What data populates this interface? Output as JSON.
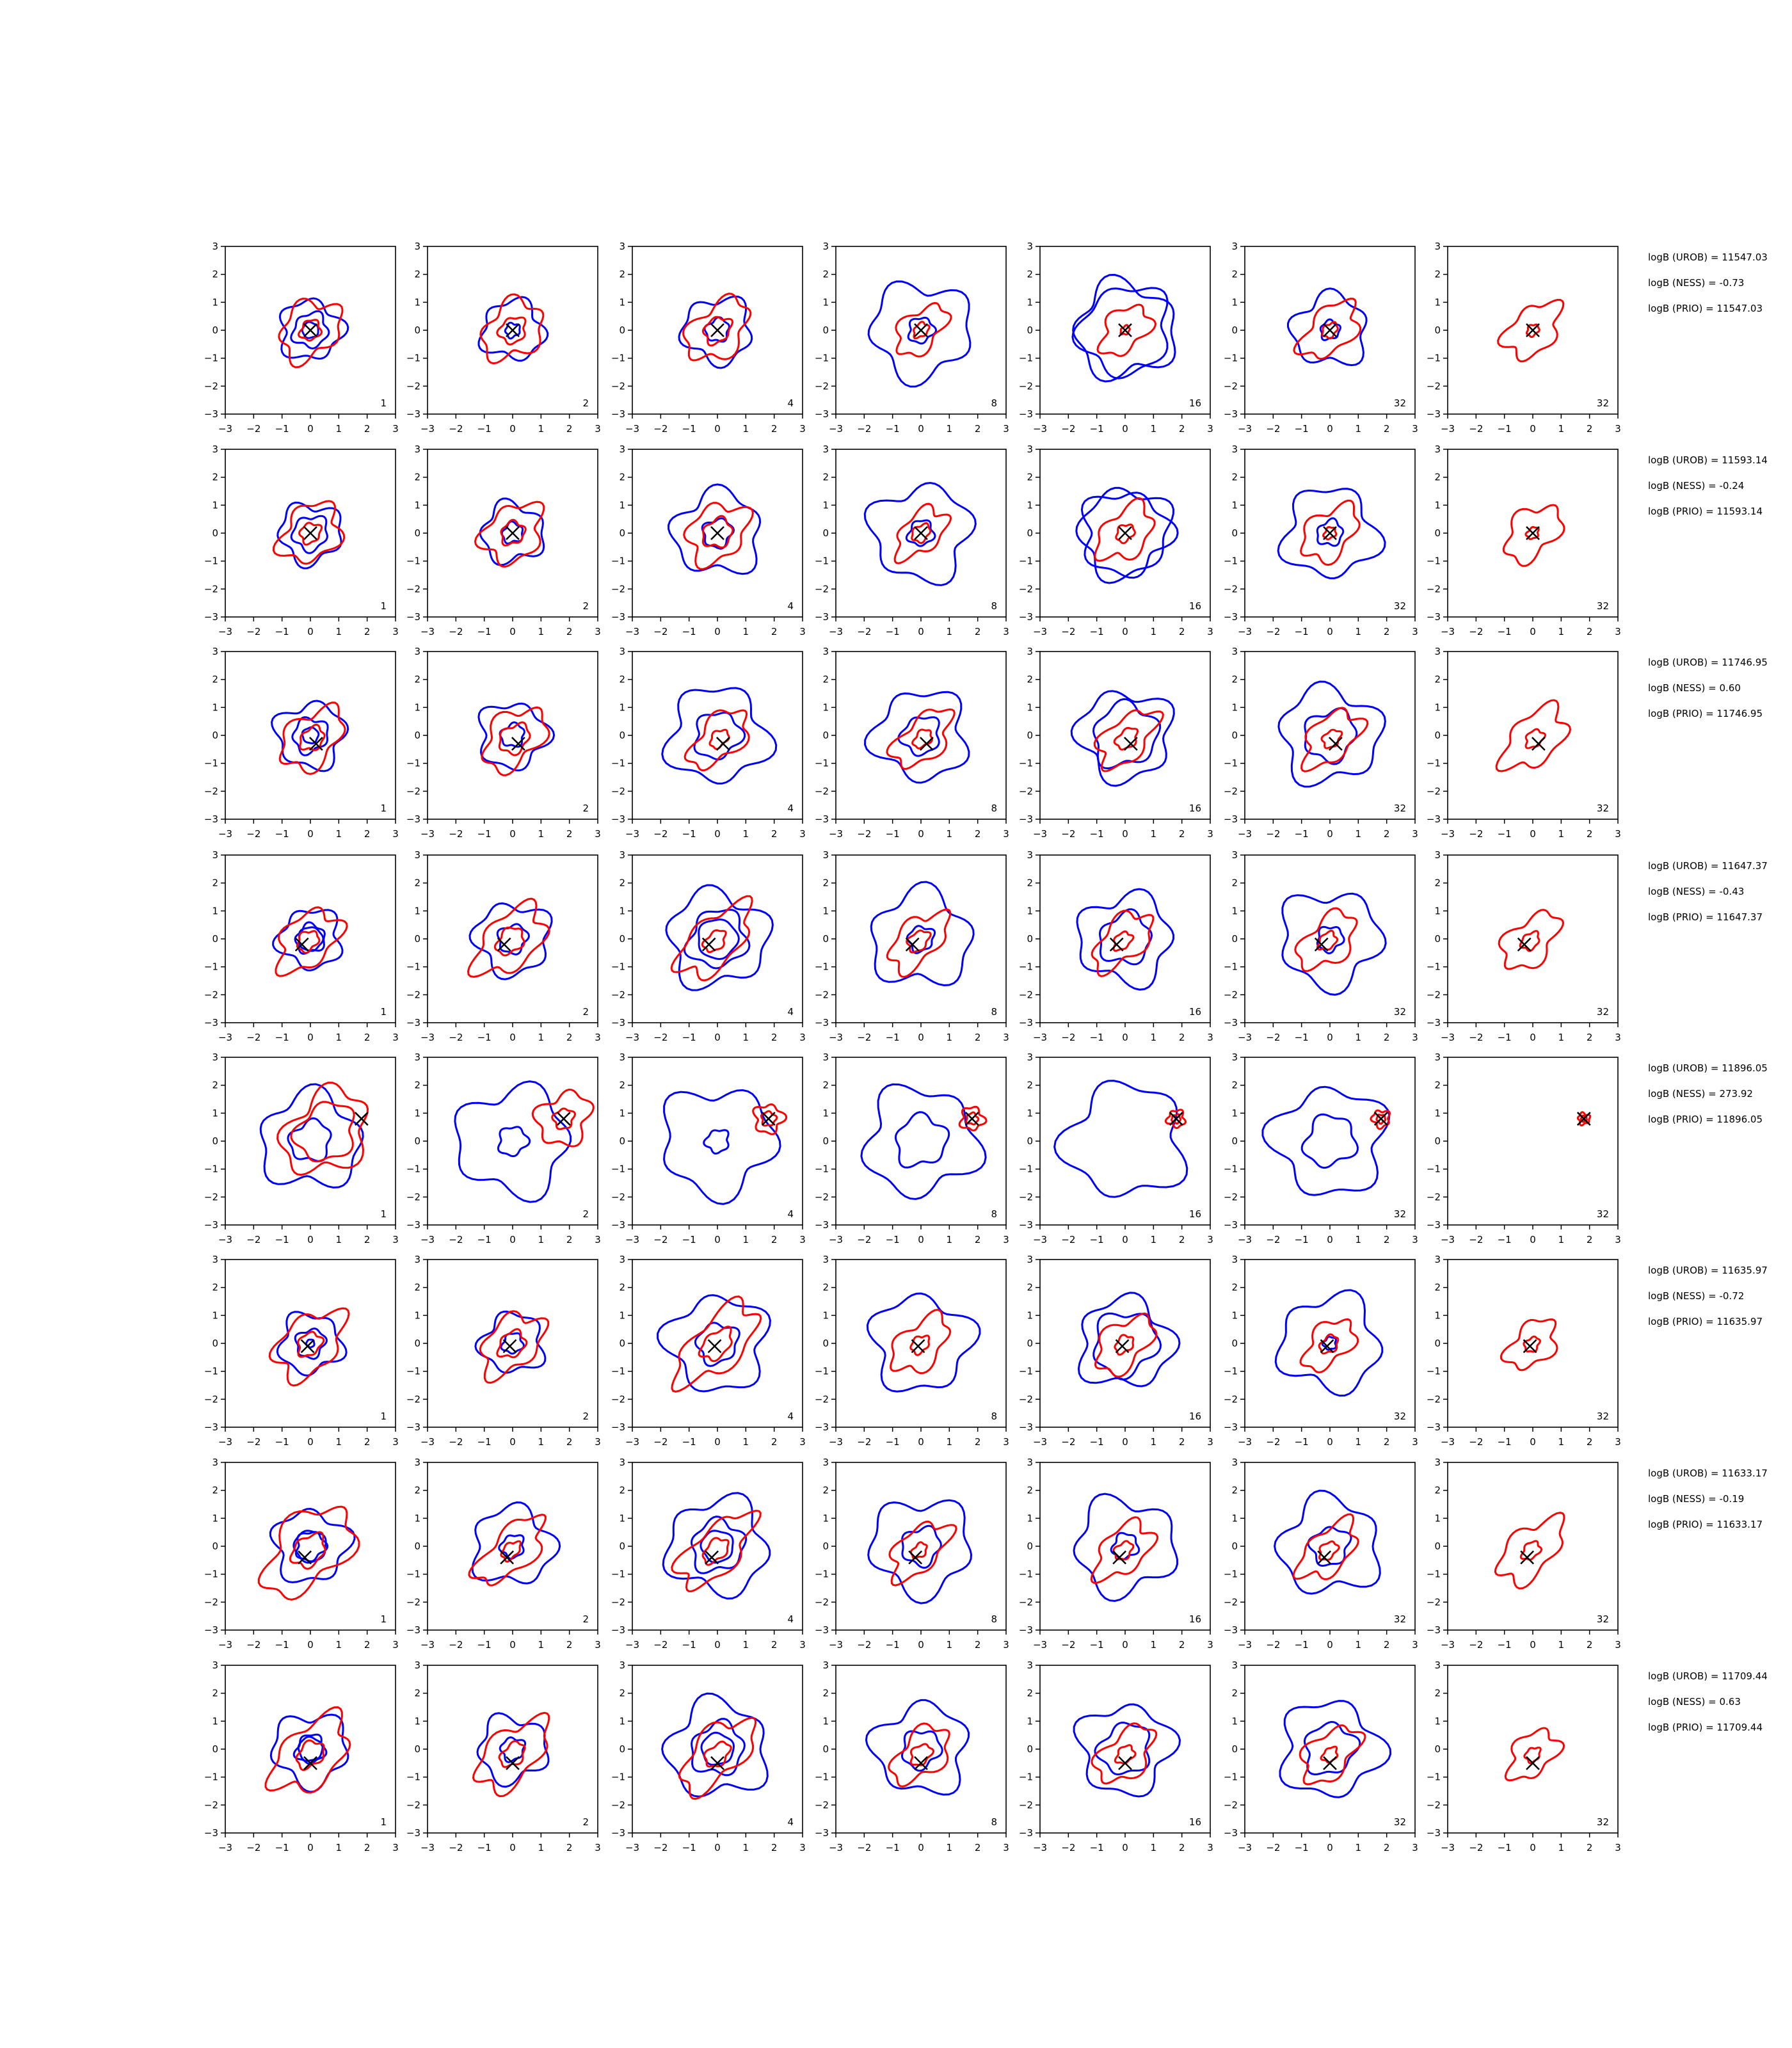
{
  "figure": {
    "panel_labels": [
      "1",
      "2",
      "4",
      "8",
      "16",
      "32",
      "32"
    ]
  },
  "colors": {
    "red_contours": "#ff0000",
    "blue_contours": "#0000ff",
    "marker": "#000000"
  },
  "chart_data": {
    "type": "contour-grid",
    "rows": 8,
    "cols": 7,
    "xlim": [
      -3,
      3
    ],
    "ylim": [
      -3,
      3
    ],
    "x_ticks": [
      -3,
      -2,
      -1,
      0,
      1,
      2,
      3
    ],
    "y_ticks": [
      -3,
      -2,
      -1,
      0,
      1,
      2,
      3
    ],
    "tick_labels": [
      "−3",
      "−2",
      "−1",
      "0",
      "1",
      "2",
      "3"
    ],
    "marker_symbol": "x",
    "panels": [
      {
        "marker": [
          0.0,
          0.0
        ],
        "logB": {
          "UROB": "11547.03",
          "NESS": "-0.73",
          "PRIO": "11547.03"
        },
        "blue": [
          [
            1.0,
            0.6,
            0.2,
            0,
            0
          ],
          [
            1.0,
            0.25,
            0,
            0,
            0
          ],
          [
            1.1,
            0.4,
            0,
            0,
            0
          ],
          [
            1.6,
            -0.2,
            0,
            0,
            0
          ],
          [
            1.6,
            -0.7,
            0,
            0,
            0
          ],
          [
            1.2,
            0.15,
            0,
            0,
            0
          ],
          [
            0,
            0,
            0,
            0,
            0
          ]
        ],
        "red": [
          [
            1.0,
            0.35,
            0.3,
            0,
            0
          ],
          [
            1.0,
            0.45,
            0.3,
            0,
            0
          ],
          [
            1.0,
            0.45,
            0.5,
            0,
            0
          ],
          [
            0.8,
            0.25,
            0.6,
            0,
            0
          ],
          [
            0.8,
            0.15,
            0.5,
            0,
            0
          ],
          [
            0.9,
            0.25,
            0.6,
            0,
            0
          ],
          [
            0.9,
            0.2,
            0.5,
            0,
            0
          ]
        ]
      },
      {
        "marker": [
          0.0,
          0.0
        ],
        "logB": {
          "UROB": "11593.14",
          "NESS": "-0.24",
          "PRIO": "11593.14"
        },
        "blue": [
          [
            1.0,
            0.6,
            0.0,
            0,
            0
          ],
          [
            1.0,
            0.35,
            0,
            0,
            0
          ],
          [
            1.4,
            0.5,
            0,
            0,
            0
          ],
          [
            1.6,
            -0.2,
            0,
            0,
            0
          ],
          [
            1.4,
            0.7,
            0,
            0,
            0
          ],
          [
            1.5,
            0.2,
            0,
            0,
            0
          ],
          [
            0,
            0,
            0,
            0,
            0
          ]
        ],
        "red": [
          [
            1.0,
            0.35,
            0.3,
            0,
            0
          ],
          [
            1.0,
            0.4,
            0.3,
            0,
            0
          ],
          [
            1.0,
            0.5,
            0.3,
            0,
            0
          ],
          [
            0.8,
            0.3,
            0.6,
            0,
            0
          ],
          [
            0.9,
            0.3,
            0.5,
            0,
            0
          ],
          [
            0.9,
            0.2,
            0.5,
            0,
            0
          ],
          [
            0.9,
            0.2,
            0.5,
            0,
            0
          ]
        ]
      },
      {
        "marker": [
          0.2,
          -0.3
        ],
        "logB": {
          "UROB": "11746.95",
          "NESS": "0.60",
          "PRIO": "11746.95"
        },
        "blue": [
          [
            1.1,
            0.6,
            0.2,
            0,
            0
          ],
          [
            1.1,
            0.4,
            0,
            0,
            0
          ],
          [
            1.6,
            0.8,
            0,
            0,
            0
          ],
          [
            1.5,
            -0.3,
            0,
            0,
            0
          ],
          [
            1.5,
            -0.5,
            0,
            0,
            0
          ],
          [
            1.6,
            0.4,
            0,
            0,
            0
          ],
          [
            0,
            0,
            0,
            0,
            0
          ]
        ],
        "red": [
          [
            1.0,
            0.4,
            0.5,
            0,
            0
          ],
          [
            1.0,
            0.5,
            0.5,
            0,
            0
          ],
          [
            0.9,
            0.3,
            0.7,
            0,
            0
          ],
          [
            0.9,
            0.3,
            0.7,
            0,
            0
          ],
          [
            0.9,
            0.35,
            0.7,
            0,
            0
          ],
          [
            0.9,
            0.3,
            0.6,
            0,
            0
          ],
          [
            1.0,
            0.3,
            0.6,
            0,
            0
          ]
        ]
      },
      {
        "marker": [
          -0.3,
          -0.2
        ],
        "logB": {
          "UROB": "11647.37",
          "NESS": "-0.43",
          "PRIO": "11647.37"
        },
        "blue": [
          [
            1.0,
            0.5,
            0.3,
            0,
            0
          ],
          [
            1.2,
            0.5,
            0,
            0,
            0
          ],
          [
            1.6,
            1.0,
            0.5,
            0,
            0
          ],
          [
            1.6,
            -0.2,
            0,
            0,
            0
          ],
          [
            1.5,
            0.4,
            0,
            0,
            0
          ],
          [
            1.6,
            -0.2,
            0,
            0,
            0
          ],
          [
            0,
            0,
            0,
            0,
            0
          ]
        ],
        "red": [
          [
            1.0,
            0.35,
            0.5,
            0,
            0
          ],
          [
            1.1,
            0.45,
            0.6,
            0,
            0
          ],
          [
            1.1,
            0.35,
            0.8,
            0,
            0
          ],
          [
            0.9,
            0.35,
            0.7,
            0,
            0
          ],
          [
            0.9,
            0.3,
            0.7,
            0,
            0
          ],
          [
            0.9,
            0.3,
            0.6,
            0,
            0
          ],
          [
            0.9,
            0.3,
            0.6,
            0,
            0
          ]
        ]
      },
      {
        "marker": [
          1.8,
          0.8
        ],
        "logB": {
          "UROB": "11896.05",
          "NESS": "273.92",
          "PRIO": "11896.05"
        },
        "blue": [
          [
            1.6,
            0.7,
            0,
            0,
            0
          ],
          [
            1.8,
            0.5,
            0,
            0,
            0
          ],
          [
            1.8,
            0.4,
            0,
            0,
            0
          ],
          [
            1.8,
            0.4,
            0,
            0,
            0
          ],
          [
            1.9,
            0,
            0,
            0,
            0
          ],
          [
            1.8,
            0.4,
            0,
            0,
            0
          ],
          [
            0,
            0,
            0,
            0,
            0
          ]
        ],
        "red": [
          [
            1.4,
            1.0,
            0.3,
            0,
            0
          ],
          [
            0.9,
            0.35,
            0.2,
            1,
            0
          ],
          [
            0.5,
            0.25,
            0,
            1,
            0
          ],
          [
            0.4,
            0.2,
            0,
            1,
            0
          ],
          [
            0.3,
            0.15,
            0,
            1,
            0
          ],
          [
            0.3,
            0.15,
            0,
            1,
            0
          ],
          [
            0.2,
            0.1,
            0,
            1,
            0
          ]
        ]
      },
      {
        "marker": [
          -0.1,
          -0.1
        ],
        "logB": {
          "UROB": "11635.97",
          "NESS": "-0.72",
          "PRIO": "11635.97"
        },
        "blue": [
          [
            1.0,
            0.5,
            0.1,
            0,
            0
          ],
          [
            1.0,
            0.35,
            0,
            0,
            0
          ],
          [
            1.6,
            0.7,
            0,
            0,
            0
          ],
          [
            1.6,
            0,
            0,
            0,
            0
          ],
          [
            1.5,
            0.5,
            0,
            0,
            0
          ],
          [
            1.6,
            0.1,
            0,
            0,
            0
          ],
          [
            0,
            0,
            0,
            0,
            0
          ]
        ],
        "red": [
          [
            1.1,
            0.4,
            0.5,
            0,
            0
          ],
          [
            1.0,
            0.45,
            0.5,
            0,
            0
          ],
          [
            1.2,
            0.5,
            0.9,
            0,
            0
          ],
          [
            0.9,
            0.3,
            0.6,
            0,
            0
          ],
          [
            0.9,
            0.3,
            0.6,
            0,
            0
          ],
          [
            0.8,
            0.3,
            0.6,
            0,
            0
          ],
          [
            0.8,
            0.25,
            0.5,
            0,
            0
          ]
        ]
      },
      {
        "marker": [
          -0.2,
          -0.4
        ],
        "logB": {
          "UROB": "11633.17",
          "NESS": "-0.19",
          "PRIO": "11633.17"
        },
        "blue": [
          [
            1.2,
            0.5,
            0.4,
            0,
            0
          ],
          [
            1.3,
            0.4,
            0,
            0,
            0
          ],
          [
            1.6,
            0.9,
            0.4,
            0,
            0
          ],
          [
            1.6,
            -0.3,
            0,
            0,
            0
          ],
          [
            1.6,
            -0.2,
            0,
            0,
            0
          ],
          [
            1.6,
            0.3,
            0,
            0,
            0
          ],
          [
            0,
            0,
            0,
            0,
            0
          ]
        ],
        "red": [
          [
            1.4,
            0.55,
            0.6,
            0,
            0
          ],
          [
            1.0,
            0.3,
            0.9,
            0,
            0
          ],
          [
            1.1,
            0.4,
            0.9,
            0,
            0
          ],
          [
            0.9,
            0.25,
            0.7,
            0,
            0
          ],
          [
            0.9,
            0.3,
            0.6,
            0,
            0
          ],
          [
            0.9,
            0.3,
            0.7,
            0,
            0
          ],
          [
            1.0,
            0.3,
            0.7,
            0,
            0
          ]
        ]
      },
      {
        "marker": [
          0.0,
          -0.5
        ],
        "logB": {
          "UROB": "11709.44",
          "NESS": "0.63",
          "PRIO": "11709.44"
        },
        "blue": [
          [
            1.2,
            0.5,
            0.3,
            0,
            0
          ],
          [
            1.1,
            0.4,
            0,
            0,
            0
          ],
          [
            1.6,
            0.9,
            0.4,
            0,
            0
          ],
          [
            1.5,
            0.3,
            0,
            0,
            0
          ],
          [
            1.5,
            -0.4,
            0,
            0,
            0
          ],
          [
            1.6,
            0.4,
            0,
            0,
            0
          ],
          [
            0,
            0,
            0,
            0,
            0
          ]
        ],
        "red": [
          [
            1.2,
            0.45,
            0.6,
            0,
            0
          ],
          [
            1.1,
            0.4,
            0.7,
            0,
            0
          ],
          [
            1.1,
            0.4,
            0.8,
            0,
            0
          ],
          [
            0.9,
            0.35,
            0.6,
            0,
            0
          ],
          [
            0.9,
            0.3,
            0.6,
            0,
            0
          ],
          [
            0.9,
            0.25,
            0.6,
            0,
            0
          ],
          [
            0.8,
            0.25,
            0.5,
            0,
            0
          ]
        ]
      }
    ]
  }
}
